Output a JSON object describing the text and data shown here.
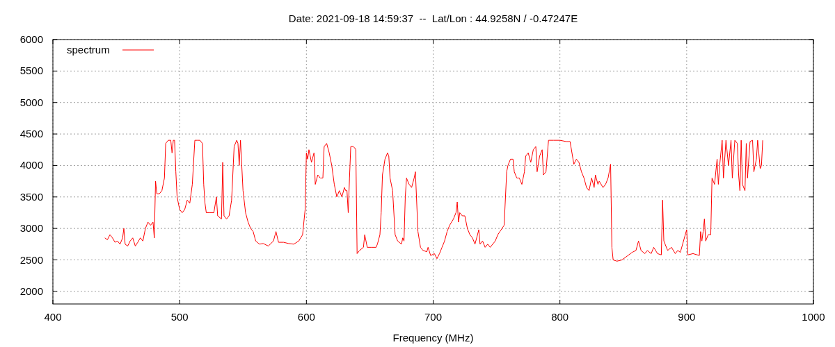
{
  "chart_data": {
    "type": "line",
    "title": "Date: 2021-09-18 14:59:37  --  Lat/Lon : 44.9258N / -0.47247E",
    "xlabel": "Frequency (MHz)",
    "xlim": [
      400,
      1000
    ],
    "xticks": [
      400,
      500,
      600,
      700,
      800,
      900,
      1000
    ],
    "ylim": [
      1800,
      6000
    ],
    "yticks": [
      2000,
      2500,
      3000,
      3500,
      4000,
      4500,
      5000,
      5500,
      6000
    ],
    "grid": true,
    "legend": "top left",
    "line_style": "solid",
    "series": [
      {
        "name": "spectrum",
        "color": "#ff0000",
        "x": [
          441,
          443,
          445,
          447,
          449,
          451,
          453,
          455,
          456,
          457,
          459,
          461,
          463,
          465,
          467,
          469,
          471,
          473,
          475,
          477,
          479,
          480,
          481,
          482,
          484,
          486,
          488,
          489,
          491,
          493,
          494,
          495,
          496,
          497,
          498,
          500,
          502,
          504,
          506,
          508,
          510,
          512,
          514,
          516,
          518,
          519,
          520,
          521,
          524,
          527,
          529,
          530,
          533,
          534,
          535,
          537,
          539,
          541,
          543,
          545,
          546,
          547,
          548,
          550,
          552,
          554,
          556,
          558,
          560,
          563,
          566,
          570,
          574,
          576,
          578,
          582,
          586,
          590,
          594,
          597,
          599,
          600,
          601,
          602,
          604,
          606,
          607,
          609,
          611,
          613,
          614,
          616,
          618,
          620,
          622,
          624,
          626,
          628,
          630,
          631,
          632,
          633,
          634,
          635,
          637,
          638,
          639,
          640,
          642,
          645,
          646,
          648,
          651,
          655,
          656,
          658,
          659,
          660,
          662,
          664,
          665,
          666,
          668,
          670,
          672,
          675,
          676,
          677,
          678,
          679,
          681,
          683,
          685,
          686,
          688,
          690,
          692,
          695,
          696,
          698,
          701,
          703,
          705,
          707,
          709,
          711,
          713,
          716,
          718,
          719,
          720,
          721,
          723,
          725,
          727,
          729,
          731,
          733,
          735,
          736,
          737,
          739,
          741,
          743,
          745,
          747,
          749,
          751,
          756,
          758,
          759,
          761,
          763,
          764,
          766,
          768,
          770,
          772,
          773,
          775,
          777,
          779,
          781,
          782,
          784,
          786,
          787,
          789,
          791,
          795,
          800,
          805,
          808,
          811,
          813,
          815,
          817,
          819,
          821,
          823,
          825,
          827,
          828,
          830,
          831,
          834,
          836,
          838,
          840,
          841,
          842,
          845,
          849,
          853,
          857,
          860,
          862,
          864,
          867,
          869,
          872,
          874,
          877,
          880,
          881,
          882,
          885,
          888,
          891,
          893,
          895,
          900,
          901,
          905,
          910,
          911,
          912,
          913,
          914,
          915,
          917,
          919,
          920,
          922,
          924,
          925,
          926,
          928,
          929,
          931,
          933,
          935,
          936,
          938,
          940,
          941,
          942,
          943,
          944,
          946,
          947,
          948,
          950,
          952,
          953,
          955,
          956,
          958,
          959,
          960
        ],
        "values": [
          2850,
          2820,
          2900,
          2850,
          2780,
          2800,
          2750,
          2850,
          3000,
          2750,
          2720,
          2800,
          2850,
          2720,
          2780,
          2850,
          2800,
          3000,
          3100,
          3050,
          3100,
          2850,
          3750,
          3550,
          3550,
          3600,
          3800,
          4350,
          4400,
          4400,
          4200,
          4400,
          4400,
          3900,
          3500,
          3300,
          3250,
          3300,
          3450,
          3400,
          3700,
          4400,
          4400,
          4400,
          4350,
          3700,
          3400,
          3250,
          3250,
          3250,
          3500,
          3200,
          3150,
          4050,
          3200,
          3150,
          3200,
          3450,
          4300,
          4400,
          4350,
          4000,
          4400,
          3600,
          3250,
          3100,
          3000,
          2950,
          2800,
          2750,
          2760,
          2720,
          2800,
          2950,
          2780,
          2780,
          2760,
          2750,
          2800,
          2900,
          3300,
          4200,
          4100,
          4250,
          4050,
          4200,
          3700,
          3850,
          3800,
          3800,
          4300,
          4350,
          4200,
          4000,
          3700,
          3500,
          3600,
          3500,
          3650,
          3600,
          3600,
          3250,
          3800,
          4300,
          4300,
          4280,
          4250,
          2600,
          2650,
          2700,
          2900,
          2700,
          2700,
          2700,
          2750,
          2900,
          3250,
          3850,
          4100,
          4200,
          4150,
          3800,
          3600,
          2900,
          2800,
          2750,
          2850,
          2800,
          3500,
          3800,
          3700,
          3650,
          3800,
          3900,
          2950,
          2700,
          2650,
          2630,
          2700,
          2570,
          2600,
          2520,
          2600,
          2700,
          2800,
          2950,
          3050,
          3150,
          3250,
          3420,
          3100,
          3250,
          3200,
          3200,
          3000,
          2900,
          2850,
          2750,
          2900,
          2980,
          2750,
          2800,
          2700,
          2750,
          2700,
          2750,
          2800,
          2900,
          3050,
          3900,
          4000,
          4100,
          4100,
          3900,
          3800,
          3800,
          3700,
          3900,
          4150,
          4200,
          4050,
          4250,
          4300,
          3900,
          4150,
          4250,
          3850,
          3900,
          4400,
          4400,
          4400,
          4380,
          4380,
          4020,
          4100,
          4050,
          3900,
          3800,
          3650,
          3600,
          3800,
          3650,
          3850,
          3700,
          3750,
          3650,
          3700,
          3800,
          4020,
          2700,
          2500,
          2480,
          2500,
          2560,
          2620,
          2650,
          2800,
          2650,
          2600,
          2650,
          2600,
          2700,
          2600,
          2580,
          3450,
          2800,
          2650,
          2700,
          2600,
          2650,
          2620,
          2980,
          2580,
          2600,
          2570,
          2950,
          2800,
          2950,
          3150,
          2800,
          2900,
          2900,
          3800,
          3700,
          4100,
          3700,
          4000,
          4400,
          3800,
          4400,
          4000,
          4400,
          3800,
          4400,
          4350,
          3850,
          3600,
          4400,
          3700,
          3600,
          4350,
          3800,
          4380,
          4400,
          3900,
          4100,
          4400,
          3950,
          4000,
          4400
        ]
      }
    ]
  }
}
